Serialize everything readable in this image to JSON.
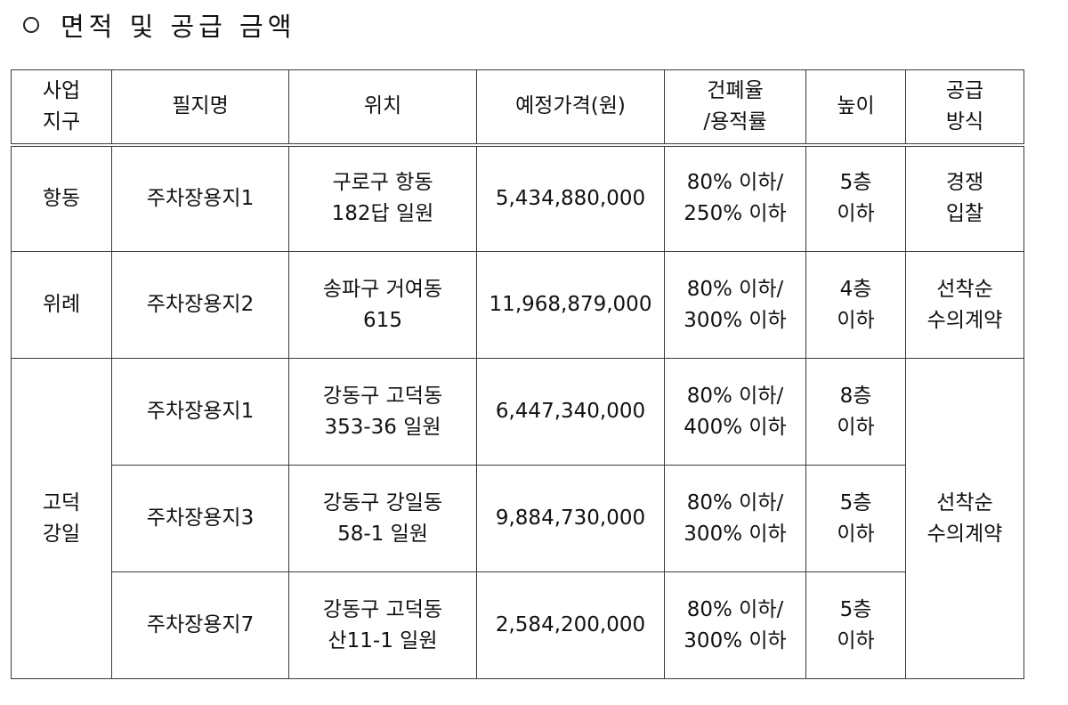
{
  "section_title": "면적 및 공급 금액",
  "columns": [
    [
      "사업",
      "지구"
    ],
    [
      "필지명"
    ],
    [
      "위치"
    ],
    [
      "예정가격(원)"
    ],
    [
      "건폐율",
      "/용적률"
    ],
    [
      "높이"
    ],
    [
      "공급",
      "방식"
    ]
  ],
  "districts": [
    {
      "lines": [
        "항동"
      ]
    },
    {
      "lines": [
        "위례"
      ]
    },
    {
      "lines": [
        "고덕",
        "강일"
      ]
    }
  ],
  "rows": [
    {
      "parcel": "주차장용지1",
      "location": [
        "구로구 항동",
        "182답 일원"
      ],
      "price": "5,434,880,000",
      "ratio": [
        "80% 이하/",
        "250% 이하"
      ],
      "height": [
        "5층",
        "이하"
      ]
    },
    {
      "parcel": "주차장용지2",
      "location": [
        "송파구 거여동",
        "615"
      ],
      "price": "11,968,879,000",
      "ratio": [
        "80% 이하/",
        "300% 이하"
      ],
      "height": [
        "4층",
        "이하"
      ]
    },
    {
      "parcel": "주차장용지1",
      "location": [
        "강동구 고덕동",
        "353-36 일원"
      ],
      "price": "6,447,340,000",
      "ratio": [
        "80% 이하/",
        "400% 이하"
      ],
      "height": [
        "8층",
        "이하"
      ]
    },
    {
      "parcel": "주차장용지3",
      "location": [
        "강동구 강일동",
        "58-1 일원"
      ],
      "price": "9,884,730,000",
      "ratio": [
        "80% 이하/",
        "300% 이하"
      ],
      "height": [
        "5층",
        "이하"
      ]
    },
    {
      "parcel": "주차장용지7",
      "location": [
        "강동구 고덕동",
        "산11-1 일원"
      ],
      "price": "2,584,200,000",
      "ratio": [
        "80% 이하/",
        "300% 이하"
      ],
      "height": [
        "5층",
        "이하"
      ]
    }
  ],
  "supply_methods": [
    {
      "lines": [
        "경쟁",
        "입찰"
      ]
    },
    {
      "lines": [
        "선착순",
        "수의계약"
      ]
    },
    {
      "lines": [
        "선착순",
        "수의계약"
      ]
    }
  ]
}
